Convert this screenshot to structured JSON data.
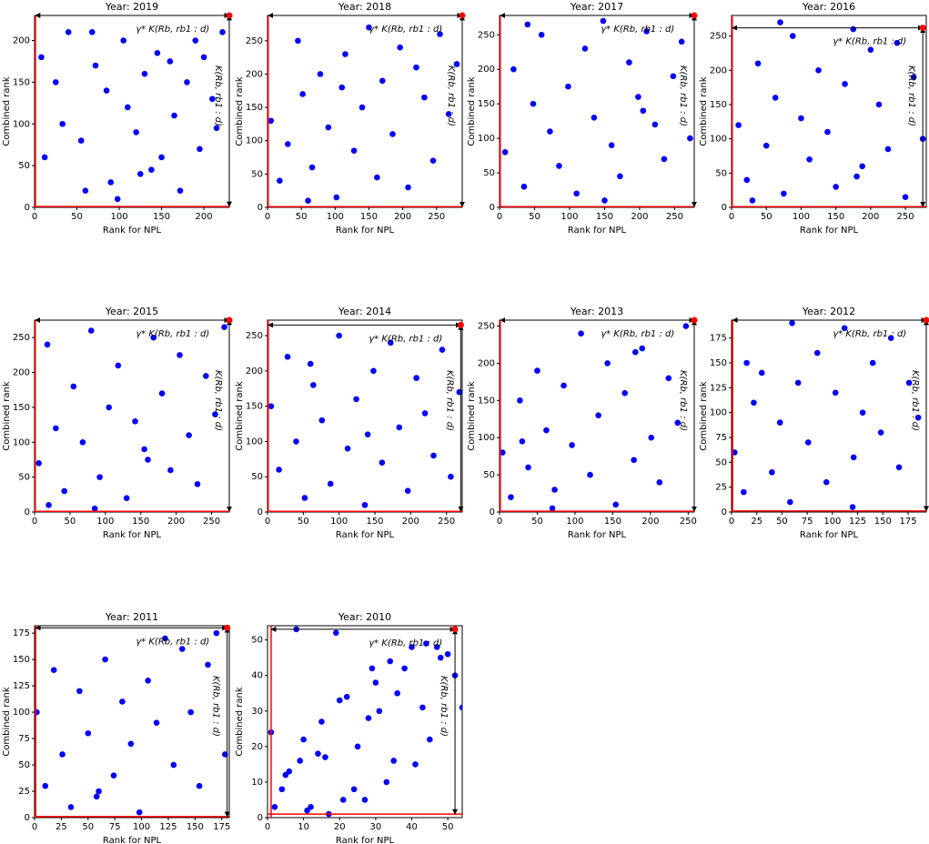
{
  "chart_data": [
    {
      "type": "scatter",
      "title": "Year: 2019",
      "xlabel": "Rank for NPL",
      "ylabel": "Combined rank",
      "color": "#0000ff",
      "x": [
        12,
        25,
        40,
        55,
        60,
        72,
        85,
        90,
        98,
        105,
        110,
        120,
        130,
        138,
        145,
        150,
        160,
        165,
        172,
        180,
        190,
        195,
        200,
        210,
        215,
        222,
        8,
        33,
        68,
        125
      ],
      "values": [
        60,
        150,
        210,
        80,
        20,
        170,
        140,
        30,
        10,
        200,
        120,
        90,
        160,
        45,
        185,
        60,
        175,
        110,
        20,
        150,
        200,
        70,
        180,
        130,
        95,
        210,
        180,
        100,
        210,
        40
      ],
      "xlim": [
        0,
        230
      ],
      "ylim": [
        0,
        230
      ],
      "xticks": [
        0,
        50,
        100,
        150,
        200
      ],
      "yticks": [
        0,
        50,
        100,
        150,
        200
      ],
      "highlight": {
        "x": 230,
        "y": 230,
        "color": "#ff0000"
      },
      "reference": {
        "x": 1,
        "y": 1,
        "color": "#ff0000"
      },
      "annotations": {
        "horizontal": "γ* K(Rb, rb1 : d)",
        "vertical": "K(Rb, rb1 : d)"
      }
    },
    {
      "type": "scatter",
      "title": "Year: 2018",
      "xlabel": "Rank for NPL",
      "ylabel": "Combined rank",
      "color": "#0000ff",
      "x": [
        5,
        18,
        30,
        45,
        52,
        66,
        78,
        90,
        102,
        115,
        128,
        140,
        150,
        162,
        170,
        185,
        196,
        208,
        220,
        232,
        245,
        255,
        268,
        280,
        110,
        60
      ],
      "values": [
        130,
        40,
        95,
        250,
        170,
        60,
        200,
        120,
        15,
        230,
        85,
        150,
        270,
        45,
        190,
        110,
        240,
        30,
        210,
        165,
        70,
        260,
        140,
        215,
        180,
        10
      ],
      "xlim": [
        0,
        288
      ],
      "ylim": [
        0,
        288
      ],
      "xticks": [
        0,
        50,
        100,
        150,
        200,
        250
      ],
      "yticks": [
        0,
        50,
        100,
        150,
        200,
        250
      ],
      "highlight": {
        "x": 288,
        "y": 288,
        "color": "#ff0000"
      },
      "reference": {
        "x": 1,
        "y": 1,
        "color": "#ff0000"
      },
      "annotations": {
        "horizontal": "γ* K(Rb, rb1 : d)",
        "vertical": "K(Rb, rb1 : d)"
      }
    },
    {
      "type": "scatter",
      "title": "Year: 2017",
      "xlabel": "Rank for NPL",
      "ylabel": "Combined rank",
      "color": "#0000ff",
      "x": [
        8,
        20,
        35,
        48,
        60,
        72,
        85,
        98,
        110,
        122,
        135,
        148,
        160,
        172,
        185,
        198,
        210,
        222,
        235,
        248,
        260,
        272,
        40,
        150,
        205
      ],
      "values": [
        80,
        200,
        30,
        150,
        250,
        110,
        60,
        175,
        20,
        230,
        130,
        270,
        90,
        45,
        210,
        160,
        255,
        120,
        70,
        190,
        240,
        100,
        265,
        10,
        140
      ],
      "xlim": [
        0,
        278
      ],
      "ylim": [
        0,
        278
      ],
      "xticks": [
        0,
        50,
        100,
        150,
        200,
        250
      ],
      "yticks": [
        0,
        50,
        100,
        150,
        200,
        250
      ],
      "highlight": {
        "x": 278,
        "y": 278,
        "color": "#ff0000"
      },
      "reference": {
        "x": 1,
        "y": 1,
        "color": "#ff0000"
      },
      "annotations": {
        "horizontal": "γ* K(Rb, rb1 : d)",
        "vertical": "K(Rb, rb1 : d)"
      }
    },
    {
      "type": "scatter",
      "title": "Year: 2016",
      "xlabel": "Rank for NPL",
      "ylabel": "Combined rank",
      "color": "#0000ff",
      "x": [
        10,
        22,
        38,
        50,
        63,
        75,
        88,
        100,
        112,
        125,
        138,
        150,
        163,
        175,
        188,
        200,
        212,
        225,
        238,
        250,
        262,
        275,
        70,
        180,
        30
      ],
      "values": [
        120,
        40,
        210,
        90,
        160,
        20,
        250,
        130,
        70,
        200,
        110,
        30,
        180,
        260,
        60,
        230,
        150,
        85,
        240,
        15,
        190,
        100,
        270,
        45,
        10
      ],
      "xlim": [
        0,
        280
      ],
      "ylim": [
        0,
        280
      ],
      "xticks": [
        0,
        50,
        100,
        150,
        200,
        250
      ],
      "yticks": [
        0,
        50,
        100,
        150,
        200,
        250
      ],
      "highlight": {
        "x": 275,
        "y": 262,
        "color": "#ff0000"
      },
      "reference": {
        "x": 1,
        "y": 1,
        "color": "#ff0000"
      },
      "annotations": {
        "horizontal": "γ* K(Rb, rb1 : d)",
        "vertical": "K(Rb, rb1 : d)"
      }
    },
    {
      "type": "scatter",
      "title": "Year: 2015",
      "xlabel": "Rank for NPL",
      "ylabel": "Combined rank",
      "color": "#0000ff",
      "x": [
        6,
        18,
        30,
        42,
        55,
        68,
        80,
        92,
        105,
        118,
        130,
        142,
        155,
        168,
        180,
        192,
        205,
        218,
        230,
        242,
        255,
        268,
        85,
        160,
        20
      ],
      "values": [
        70,
        240,
        120,
        30,
        180,
        100,
        260,
        50,
        150,
        210,
        20,
        130,
        90,
        250,
        170,
        60,
        225,
        110,
        40,
        195,
        140,
        265,
        5,
        75,
        10
      ],
      "xlim": [
        0,
        275
      ],
      "ylim": [
        0,
        275
      ],
      "xticks": [
        0,
        50,
        100,
        150,
        200,
        250
      ],
      "yticks": [
        0,
        50,
        100,
        150,
        200,
        250
      ],
      "highlight": {
        "x": 275,
        "y": 275,
        "color": "#ff0000"
      },
      "reference": {
        "x": 1,
        "y": 1,
        "color": "#ff0000"
      },
      "annotations": {
        "horizontal": "γ* K(Rb, rb1 : d)",
        "vertical": "K(Rb, rb1 : d)"
      }
    },
    {
      "type": "scatter",
      "title": "Year: 2014",
      "xlabel": "Rank for NPL",
      "ylabel": "Combined rank",
      "color": "#0000ff",
      "x": [
        5,
        16,
        28,
        40,
        52,
        64,
        76,
        88,
        100,
        112,
        124,
        136,
        148,
        160,
        172,
        184,
        196,
        208,
        220,
        232,
        244,
        256,
        268,
        60,
        140
      ],
      "values": [
        150,
        60,
        220,
        100,
        20,
        180,
        130,
        40,
        250,
        90,
        160,
        10,
        200,
        70,
        240,
        120,
        30,
        190,
        140,
        80,
        230,
        50,
        170,
        210,
        110
      ],
      "xlim": [
        0,
        272
      ],
      "ylim": [
        0,
        272
      ],
      "xticks": [
        0,
        50,
        100,
        150,
        200,
        250
      ],
      "yticks": [
        0,
        50,
        100,
        150,
        200,
        250
      ],
      "highlight": {
        "x": 270,
        "y": 265,
        "color": "#ff0000"
      },
      "reference": {
        "x": 1,
        "y": 1,
        "color": "#ff0000"
      },
      "annotations": {
        "horizontal": "γ* K(Rb, rb1 : d)",
        "vertical": "K(Rb, rb1 : d)"
      }
    },
    {
      "type": "scatter",
      "title": "Year: 2013",
      "xlabel": "Rank for NPL",
      "ylabel": "Combined rank",
      "color": "#0000ff",
      "x": [
        4,
        15,
        27,
        38,
        50,
        62,
        73,
        85,
        96,
        108,
        120,
        131,
        143,
        154,
        166,
        178,
        189,
        201,
        212,
        224,
        236,
        247,
        70,
        180,
        30
      ],
      "values": [
        80,
        20,
        150,
        60,
        190,
        110,
        30,
        170,
        90,
        240,
        50,
        130,
        200,
        10,
        160,
        70,
        220,
        100,
        40,
        180,
        120,
        250,
        5,
        215,
        95
      ],
      "xlim": [
        0,
        258
      ],
      "ylim": [
        0,
        258
      ],
      "xticks": [
        0,
        50,
        100,
        150,
        200,
        250
      ],
      "yticks": [
        0,
        50,
        100,
        150,
        200,
        250
      ],
      "highlight": {
        "x": 258,
        "y": 258,
        "color": "#ff0000"
      },
      "reference": {
        "x": 1,
        "y": 1,
        "color": "#ff0000"
      },
      "annotations": {
        "horizontal": "γ* K(Rb, rb1 : d)",
        "vertical": "K(Rb, rb1 : d)"
      }
    },
    {
      "type": "scatter",
      "title": "Year: 2012",
      "xlabel": "Rank for NPL",
      "ylabel": "Combined rank",
      "color": "#0000ff",
      "x": [
        3,
        12,
        22,
        30,
        40,
        48,
        58,
        66,
        76,
        85,
        94,
        103,
        112,
        121,
        130,
        140,
        148,
        158,
        166,
        176,
        185,
        60,
        120,
        15
      ],
      "values": [
        60,
        20,
        110,
        140,
        40,
        90,
        10,
        130,
        70,
        160,
        30,
        120,
        185,
        55,
        100,
        150,
        80,
        175,
        45,
        130,
        95,
        190,
        5,
        150
      ],
      "xlim": [
        0,
        193
      ],
      "ylim": [
        0,
        193
      ],
      "xticks": [
        0,
        25,
        50,
        75,
        100,
        125,
        150,
        175
      ],
      "yticks": [
        0,
        25,
        50,
        75,
        100,
        125,
        150,
        175
      ],
      "highlight": {
        "x": 193,
        "y": 193,
        "color": "#ff0000"
      },
      "reference": {
        "x": 1,
        "y": 1,
        "color": "#ff0000"
      },
      "annotations": {
        "horizontal": "γ* K(Rb, rb1 : d)",
        "vertical": "K(Rb, rb1 : d)"
      }
    },
    {
      "type": "scatter",
      "title": "Year: 2011",
      "xlabel": "Rank for NPL",
      "ylabel": "Combined rank",
      "color": "#0000ff",
      "x": [
        2,
        10,
        18,
        26,
        34,
        42,
        50,
        58,
        66,
        74,
        82,
        90,
        98,
        106,
        114,
        122,
        130,
        138,
        146,
        154,
        162,
        170,
        178,
        60
      ],
      "values": [
        100,
        30,
        140,
        60,
        10,
        120,
        80,
        20,
        150,
        40,
        110,
        70,
        5,
        130,
        90,
        170,
        50,
        160,
        100,
        30,
        145,
        175,
        60,
        25
      ],
      "xlim": [
        0,
        182
      ],
      "ylim": [
        0,
        182
      ],
      "xticks": [
        0,
        25,
        50,
        75,
        100,
        125,
        150,
        175
      ],
      "yticks": [
        0,
        25,
        50,
        75,
        100,
        125,
        150,
        175
      ],
      "highlight": {
        "x": 180,
        "y": 180,
        "color": "#ff0000"
      },
      "reference": {
        "x": 1,
        "y": 1,
        "color": "#ff0000"
      },
      "annotations": {
        "horizontal": "γ* K(Rb, rb1 : d)",
        "vertical": "K(Rb, rb1 : d)"
      }
    },
    {
      "type": "scatter",
      "title": "Year: 2010",
      "xlabel": "Rank for NPL",
      "ylabel": "Combined rank",
      "color": "#0000ff",
      "x": [
        1,
        2,
        4,
        5,
        6,
        8,
        9,
        10,
        11,
        12,
        14,
        15,
        16,
        17,
        19,
        20,
        21,
        22,
        24,
        25,
        27,
        28,
        29,
        30,
        31,
        33,
        34,
        35,
        36,
        38,
        40,
        41,
        43,
        44,
        45,
        47,
        48,
        50,
        52,
        54
      ],
      "values": [
        24,
        3,
        8,
        12,
        13,
        53,
        16,
        22,
        2,
        3,
        18,
        27,
        17,
        1,
        52,
        33,
        5,
        34,
        8,
        20,
        5,
        28,
        42,
        38,
        30,
        10,
        44,
        16,
        35,
        42,
        48,
        15,
        31,
        49,
        22,
        48,
        45,
        46,
        40,
        31
      ],
      "xlim": [
        0,
        54
      ],
      "ylim": [
        0,
        54
      ],
      "xticks": [
        0,
        10,
        20,
        30,
        40,
        50
      ],
      "yticks": [
        0,
        10,
        20,
        30,
        40,
        50
      ],
      "highlight": {
        "x": 52,
        "y": 53,
        "color": "#ff0000"
      },
      "reference": {
        "x": 1,
        "y": 1,
        "color": "#ff0000"
      },
      "annotations": {
        "horizontal": "γ* K(Rb, rb1 : d)",
        "vertical": "K(Rb, rb1 : d)"
      }
    }
  ]
}
